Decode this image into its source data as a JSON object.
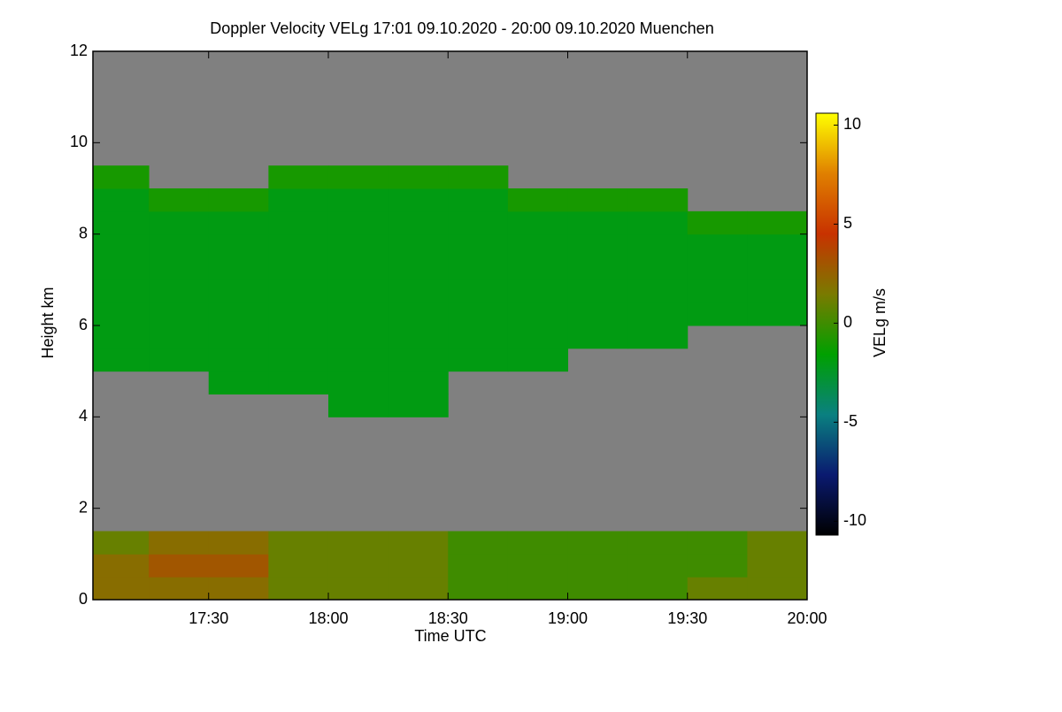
{
  "chart_data": {
    "type": "heatmap",
    "title": "Doppler Velocity VELg   17:01 09.10.2020 - 20:00 09.10.2020 Muenchen",
    "x_label": "Time UTC",
    "y_label": "Height km",
    "colorbar_label": "VELg m/s",
    "xlim": [
      17.0167,
      20.0
    ],
    "xticks": [
      {
        "value": 17.5,
        "label": "17:30"
      },
      {
        "value": 18,
        "label": "18:00"
      },
      {
        "value": 18.5,
        "label": "18:30"
      },
      {
        "value": 19,
        "label": "19:00"
      },
      {
        "value": 19.5,
        "label": "19:30"
      },
      {
        "value": 20,
        "label": "20:00"
      }
    ],
    "ylim": [
      0,
      12
    ],
    "yticks": [
      0,
      2,
      4,
      6,
      8,
      10,
      12
    ],
    "xbins": [
      17.0167,
      17.25,
      17.5,
      17.75,
      18,
      18.25,
      18.5,
      18.75,
      19,
      19.25,
      19.5,
      19.75,
      20
    ],
    "ybins": [
      0,
      0.5,
      1,
      1.5,
      2,
      2.5,
      3,
      3.5,
      4,
      4.5,
      5,
      5.5,
      6,
      6.5,
      7,
      7.5,
      8,
      8.5,
      9,
      9.5,
      10,
      10.5,
      11,
      11.5,
      12
    ],
    "z": [
      [
        2,
        2,
        2,
        1,
        1,
        1,
        0,
        0,
        0,
        0,
        1,
        1
      ],
      [
        2,
        3,
        3,
        1,
        1,
        1,
        0,
        0,
        0,
        0,
        0,
        1
      ],
      [
        1,
        2,
        2,
        1,
        1,
        1,
        0,
        0,
        0,
        0,
        0,
        1
      ],
      [
        null,
        null,
        null,
        null,
        null,
        null,
        null,
        null,
        null,
        null,
        null,
        null
      ],
      [
        null,
        null,
        null,
        null,
        null,
        null,
        null,
        null,
        null,
        null,
        null,
        null
      ],
      [
        null,
        null,
        null,
        null,
        null,
        null,
        null,
        null,
        null,
        null,
        null,
        null
      ],
      [
        null,
        null,
        null,
        null,
        null,
        null,
        null,
        null,
        null,
        null,
        null,
        null
      ],
      [
        null,
        null,
        null,
        null,
        null,
        null,
        null,
        null,
        null,
        null,
        null,
        null
      ],
      [
        null,
        null,
        null,
        null,
        -2,
        -2,
        null,
        null,
        null,
        null,
        null,
        null
      ],
      [
        null,
        null,
        -2,
        -2,
        -2,
        -2,
        null,
        null,
        null,
        null,
        null,
        null
      ],
      [
        -2,
        -2,
        -2,
        -2,
        -2,
        -2,
        -2,
        -2,
        null,
        null,
        null,
        null
      ],
      [
        -2,
        -2,
        -2,
        -2,
        -2,
        -2,
        -2,
        -2,
        -2,
        -2,
        null,
        null
      ],
      [
        -2,
        -2,
        -2,
        -2,
        -2,
        -2,
        -2,
        -2,
        -2,
        -2,
        -2,
        -2
      ],
      [
        -2,
        -2,
        -2,
        -2,
        -2,
        -2,
        -2,
        -2,
        -2,
        -2,
        -2,
        -2
      ],
      [
        -2,
        -2,
        -2,
        -2,
        -2,
        -2,
        -2,
        -2,
        -2,
        -2,
        -2,
        -2
      ],
      [
        -2,
        -2,
        -2,
        -2,
        -2,
        -2,
        -2,
        -2,
        -2,
        -2,
        -2,
        -2
      ],
      [
        -2,
        -2,
        -2,
        -2,
        -2,
        -2,
        -2,
        -2,
        -2,
        -2,
        -1,
        -1
      ],
      [
        -2,
        -1,
        -1,
        -2,
        -2,
        -2,
        -2,
        -1,
        -1,
        -1,
        null,
        null
      ],
      [
        -1,
        null,
        null,
        -1,
        -1,
        -1,
        -1,
        null,
        null,
        null,
        null,
        null
      ],
      [
        null,
        null,
        null,
        null,
        null,
        null,
        null,
        null,
        null,
        null,
        null,
        null
      ],
      [
        null,
        null,
        null,
        null,
        null,
        null,
        null,
        null,
        null,
        null,
        null,
        null
      ],
      [
        null,
        null,
        null,
        null,
        null,
        null,
        null,
        null,
        null,
        null,
        null,
        null
      ],
      [
        null,
        null,
        null,
        null,
        null,
        null,
        null,
        null,
        null,
        null,
        null,
        null
      ],
      [
        null,
        null,
        null,
        null,
        null,
        null,
        null,
        null,
        null,
        null,
        null,
        null
      ]
    ],
    "zlim": [
      -10.7,
      10.6
    ],
    "zticks": [
      -10,
      -5,
      0,
      5,
      10
    ],
    "colorscale": [
      "#000000",
      "#0a1a70",
      "#0a8080",
      "#00a000",
      "#7a7a00",
      "#c83200",
      "#e08000",
      "#ffff00"
    ],
    "nan_color": "#808080"
  }
}
